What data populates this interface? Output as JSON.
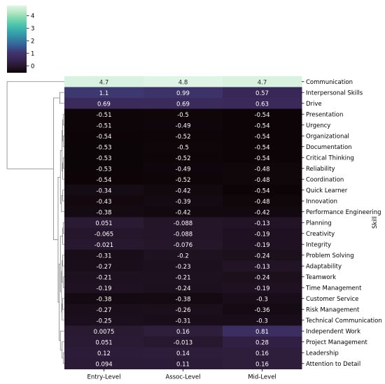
{
  "chart_data": {
    "type": "heatmap",
    "title": "",
    "xlabel": "",
    "ylabel": "Skill",
    "columns": [
      "Entry-Level",
      "Assoc-Level",
      "Mid-Level"
    ],
    "rows": [
      {
        "label": "Communication",
        "values": [
          4.7,
          4.8,
          4.7
        ],
        "text": [
          "4.7",
          "4.8",
          "4.7"
        ]
      },
      {
        "label": "Interpersonal Skills",
        "values": [
          1.1,
          0.99,
          0.57
        ],
        "text": [
          "1.1",
          "0.99",
          "0.57"
        ]
      },
      {
        "label": "Drive",
        "values": [
          0.69,
          0.69,
          0.63
        ],
        "text": [
          "0.69",
          "0.69",
          "0.63"
        ]
      },
      {
        "label": "Presentation",
        "values": [
          -0.51,
          -0.5,
          -0.54
        ],
        "text": [
          "-0.51",
          "-0.5",
          "-0.54"
        ]
      },
      {
        "label": "Urgency",
        "values": [
          -0.51,
          -0.49,
          -0.54
        ],
        "text": [
          "-0.51",
          "-0.49",
          "-0.54"
        ]
      },
      {
        "label": "Organizational",
        "values": [
          -0.54,
          -0.52,
          -0.54
        ],
        "text": [
          "-0.54",
          "-0.52",
          "-0.54"
        ]
      },
      {
        "label": "Documentation",
        "values": [
          -0.53,
          -0.5,
          -0.54
        ],
        "text": [
          "-0.53",
          "-0.5",
          "-0.54"
        ]
      },
      {
        "label": "Critical Thinking",
        "values": [
          -0.53,
          -0.52,
          -0.54
        ],
        "text": [
          "-0.53",
          "-0.52",
          "-0.54"
        ]
      },
      {
        "label": "Reliability",
        "values": [
          -0.53,
          -0.49,
          -0.48
        ],
        "text": [
          "-0.53",
          "-0.49",
          "-0.48"
        ]
      },
      {
        "label": "Coordination",
        "values": [
          -0.54,
          -0.52,
          -0.48
        ],
        "text": [
          "-0.54",
          "-0.52",
          "-0.48"
        ]
      },
      {
        "label": "Quick Learner",
        "values": [
          -0.34,
          -0.42,
          -0.54
        ],
        "text": [
          "-0.34",
          "-0.42",
          "-0.54"
        ]
      },
      {
        "label": "Innovation",
        "values": [
          -0.43,
          -0.39,
          -0.48
        ],
        "text": [
          "-0.43",
          "-0.39",
          "-0.48"
        ]
      },
      {
        "label": "Performance Engineering",
        "values": [
          -0.38,
          -0.42,
          -0.42
        ],
        "text": [
          "-0.38",
          "-0.42",
          "-0.42"
        ]
      },
      {
        "label": "Planning",
        "values": [
          0.051,
          -0.088,
          -0.13
        ],
        "text": [
          "0.051",
          "-0.088",
          "-0.13"
        ]
      },
      {
        "label": "Creativity",
        "values": [
          -0.065,
          -0.088,
          -0.19
        ],
        "text": [
          "-0.065",
          "-0.088",
          "-0.19"
        ]
      },
      {
        "label": "Integrity",
        "values": [
          -0.021,
          -0.076,
          -0.19
        ],
        "text": [
          "-0.021",
          "-0.076",
          "-0.19"
        ]
      },
      {
        "label": "Problem Solving",
        "values": [
          -0.31,
          -0.2,
          -0.24
        ],
        "text": [
          "-0.31",
          "-0.2",
          "-0.24"
        ]
      },
      {
        "label": "Adaptability",
        "values": [
          -0.27,
          -0.23,
          -0.13
        ],
        "text": [
          "-0.27",
          "-0.23",
          "-0.13"
        ]
      },
      {
        "label": "Teamwork",
        "values": [
          -0.21,
          -0.21,
          -0.24
        ],
        "text": [
          "-0.21",
          "-0.21",
          "-0.24"
        ]
      },
      {
        "label": "Time Management",
        "values": [
          -0.19,
          -0.24,
          -0.19
        ],
        "text": [
          "-0.19",
          "-0.24",
          "-0.19"
        ]
      },
      {
        "label": "Customer Service",
        "values": [
          -0.38,
          -0.38,
          -0.3
        ],
        "text": [
          "-0.38",
          "-0.38",
          "-0.3"
        ]
      },
      {
        "label": "Risk Management",
        "values": [
          -0.27,
          -0.26,
          -0.36
        ],
        "text": [
          "-0.27",
          "-0.26",
          "-0.36"
        ]
      },
      {
        "label": "Technical Communication",
        "values": [
          -0.25,
          -0.31,
          -0.3
        ],
        "text": [
          "-0.25",
          "-0.31",
          "-0.3"
        ]
      },
      {
        "label": "Independent Work",
        "values": [
          0.0075,
          0.16,
          0.81
        ],
        "text": [
          "0.0075",
          "0.16",
          "0.81"
        ]
      },
      {
        "label": "Project Management",
        "values": [
          0.051,
          -0.013,
          0.28
        ],
        "text": [
          "0.051",
          "-0.013",
          "0.28"
        ]
      },
      {
        "label": "Leadership",
        "values": [
          0.12,
          0.14,
          0.16
        ],
        "text": [
          "0.12",
          "0.14",
          "0.16"
        ]
      },
      {
        "label": "Attention to Detail",
        "values": [
          0.094,
          0.11,
          0.16
        ],
        "text": [
          "0.094",
          "0.11",
          "0.16"
        ]
      }
    ],
    "colorbar": {
      "colormap": "mako",
      "vmin": -0.55,
      "vmax": 4.8,
      "ticks": [
        0,
        1,
        2,
        3,
        4
      ],
      "tick_labels": [
        "0",
        "1",
        "2",
        "3",
        "4"
      ],
      "placement": "top-left"
    },
    "dendrogram": {
      "side": "left",
      "axis": "rows"
    },
    "colors": {
      "low": "#0b0405",
      "mid": "#3e356b",
      "high": "#def5e5",
      "annotation_light": "#ffffff",
      "annotation_dark": "#262626",
      "tree": "#808080"
    }
  }
}
